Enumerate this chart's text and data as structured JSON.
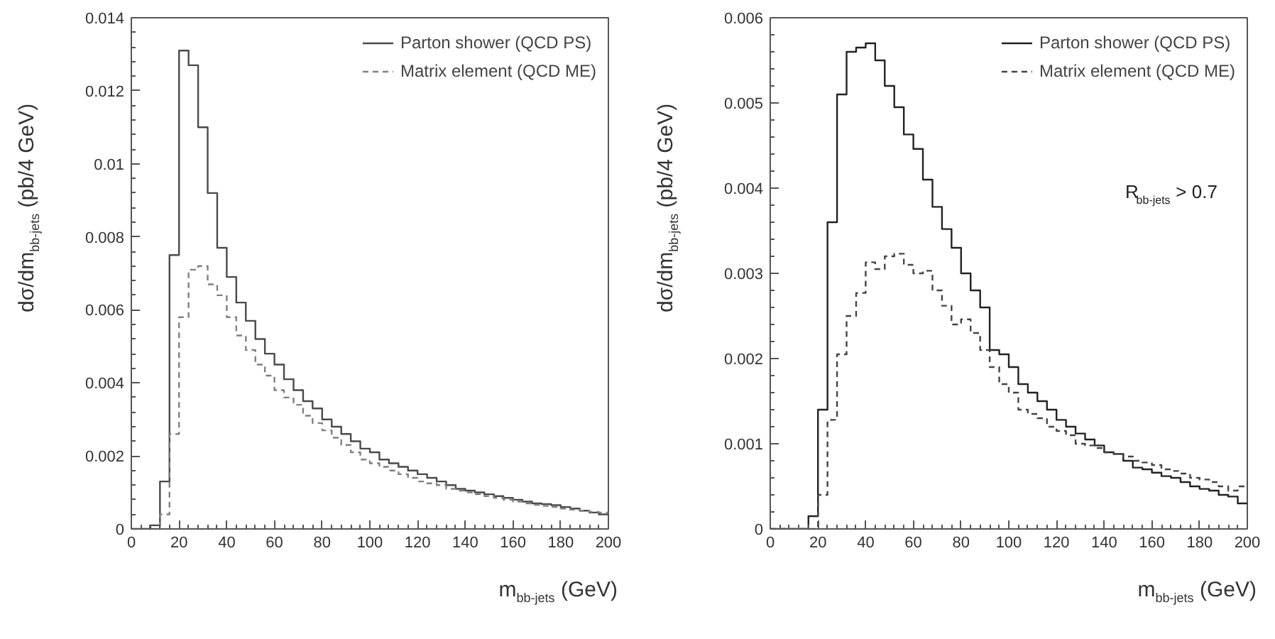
{
  "chart_data": [
    {
      "type": "histogram",
      "xlabel": "m$_{bb-jets}$ (GeV)",
      "ylabel": "dσ/dm$_{bb-jets}$ (pb/4 GeV)",
      "legend": "top right",
      "grid": false,
      "bins": [
        0,
        4,
        8,
        12,
        16,
        20,
        24,
        28,
        32,
        36,
        40,
        44,
        48,
        52,
        56,
        60,
        64,
        68,
        72,
        76,
        80,
        84,
        88,
        92,
        96,
        100,
        104,
        108,
        112,
        116,
        120,
        124,
        128,
        132,
        136,
        140,
        144,
        148,
        152,
        156,
        160,
        164,
        168,
        172,
        176,
        180,
        184,
        188,
        192,
        196,
        200
      ],
      "xlim": [
        0,
        200
      ],
      "ylim": [
        0,
        0.014
      ],
      "xticks": [
        0,
        20,
        40,
        60,
        80,
        100,
        120,
        140,
        160,
        180,
        200
      ],
      "yticks": [
        0,
        0.002,
        0.004,
        0.006,
        0.008,
        {
          "value": 0.01,
          "label": "0.01"
        },
        0.012,
        0.014
      ],
      "series": [
        {
          "name": "Parton shower (QCD PS)",
          "color": "#4a4a4a",
          "line_style": "solid",
          "values": [
            0,
            0,
            0.0001,
            0.0013,
            0.0075,
            0.0131,
            0.0127,
            0.011,
            0.0092,
            0.0077,
            0.0069,
            0.0062,
            0.0057,
            0.0052,
            0.0048,
            0.0045,
            0.0041,
            0.0038,
            0.0035,
            0.0033,
            0.003,
            0.0028,
            0.0026,
            0.0024,
            0.0022,
            0.0021,
            0.0019,
            0.0018,
            0.0017,
            0.0016,
            0.0015,
            0.0014,
            0.0013,
            0.0012,
            0.0011,
            0.00105,
            0.001,
            0.00095,
            0.0009,
            0.00085,
            0.0008,
            0.00075,
            0.0007,
            0.00068,
            0.00065,
            0.0006,
            0.00056,
            0.0005,
            0.00045,
            0.0004
          ]
        },
        {
          "name": "Matrix element (QCD ME)",
          "color": "#808080",
          "line_style": "dashed",
          "values": [
            0,
            0,
            0,
            0.0004,
            0.0026,
            0.0058,
            0.0071,
            0.0072,
            0.0067,
            0.0064,
            0.0058,
            0.0053,
            0.0049,
            0.0045,
            0.0042,
            0.0038,
            0.0036,
            0.0034,
            0.0031,
            0.0029,
            0.0027,
            0.0025,
            0.0023,
            0.0021,
            0.0019,
            0.0018,
            0.0017,
            0.0016,
            0.0015,
            0.0014,
            0.0013,
            0.00125,
            0.0012,
            0.0011,
            0.00105,
            0.001,
            0.00095,
            0.0009,
            0.00085,
            0.0008,
            0.00075,
            0.0007,
            0.00066,
            0.00063,
            0.0006,
            0.00056,
            0.00053,
            0.0005,
            0.00047,
            0.00045
          ]
        }
      ]
    },
    {
      "type": "histogram",
      "xlabel": "m$_{bb-jets}$ (GeV)",
      "ylabel": "dσ/dm$_{bb-jets}$ (pb/4 GeV)",
      "legend": "top right",
      "grid": false,
      "annotations": [
        "R$_{bb-jets}$ > 0.7"
      ],
      "bins": [
        0,
        4,
        8,
        12,
        16,
        20,
        24,
        28,
        32,
        36,
        40,
        44,
        48,
        52,
        56,
        60,
        64,
        68,
        72,
        76,
        80,
        84,
        88,
        92,
        96,
        100,
        104,
        108,
        112,
        116,
        120,
        124,
        128,
        132,
        136,
        140,
        144,
        148,
        152,
        156,
        160,
        164,
        168,
        172,
        176,
        180,
        184,
        188,
        192,
        196,
        200
      ],
      "xlim": [
        0,
        200
      ],
      "ylim": [
        0,
        0.006
      ],
      "xticks": [
        0,
        20,
        40,
        60,
        80,
        100,
        120,
        140,
        160,
        180,
        200
      ],
      "yticks": [
        0,
        0.001,
        0.002,
        0.003,
        0.004,
        0.005,
        0.006
      ],
      "series": [
        {
          "name": "Parton shower (QCD PS)",
          "color": "#222222",
          "line_style": "solid",
          "values": [
            0,
            0,
            0,
            0,
            0.00015,
            0.0014,
            0.0036,
            0.0051,
            0.0056,
            0.00565,
            0.0057,
            0.0055,
            0.0052,
            0.00495,
            0.00463,
            0.00446,
            0.0041,
            0.00378,
            0.00352,
            0.0033,
            0.003,
            0.0028,
            0.0026,
            0.0021,
            0.00205,
            0.0019,
            0.0017,
            0.0016,
            0.0015,
            0.0014,
            0.00128,
            0.0012,
            0.00112,
            0.00105,
            0.00098,
            0.0009,
            0.00088,
            0.0008,
            0.00072,
            0.0007,
            0.00066,
            0.00062,
            0.0006,
            0.00055,
            0.0005,
            0.00047,
            0.00045,
            0.0004,
            0.00038,
            0.0003
          ]
        },
        {
          "name": "Matrix element (QCD ME)",
          "color": "#444444",
          "line_style": "dashed",
          "values": [
            0,
            0,
            0,
            0,
            0,
            0.0004,
            0.00128,
            0.00205,
            0.0025,
            0.00277,
            0.00313,
            0.00305,
            0.0032,
            0.00323,
            0.0031,
            0.003,
            0.00303,
            0.0028,
            0.00262,
            0.0024,
            0.00246,
            0.0023,
            0.0021,
            0.0019,
            0.0017,
            0.0016,
            0.0014,
            0.00135,
            0.0013,
            0.0012,
            0.00115,
            0.0011,
            0.001,
            0.00098,
            0.00095,
            0.0009,
            0.00088,
            0.00085,
            0.0008,
            0.00078,
            0.00075,
            0.0007,
            0.00068,
            0.00065,
            0.0006,
            0.00058,
            0.00055,
            0.0005,
            0.00045,
            0.0005
          ]
        }
      ]
    }
  ]
}
